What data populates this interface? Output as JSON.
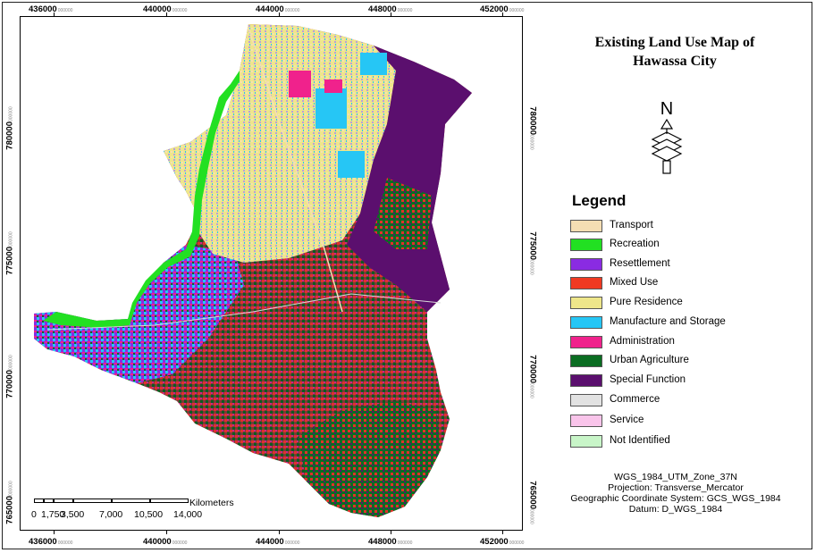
{
  "map": {
    "title_line1": "Existing Land Use Map of",
    "title_line2": "Hawassa City",
    "x_ticks": [
      "436000",
      "440000",
      "444000",
      "448000",
      "452000"
    ],
    "y_ticks": [
      "780000",
      "775000",
      "770000",
      "765000"
    ],
    "tick_suffix": "000000",
    "north_letter": "N"
  },
  "legend": {
    "title": "Legend",
    "items": [
      {
        "label": "Transport",
        "color": "#f5deb3"
      },
      {
        "label": "Recreation",
        "color": "#22e022"
      },
      {
        "label": "Resettlement",
        "color": "#8a2be2"
      },
      {
        "label": "Mixed Use",
        "color": "#f03a22"
      },
      {
        "label": "Pure Residence",
        "color": "#eee68a"
      },
      {
        "label": "Manufacture and Storage",
        "color": "#26c6f5"
      },
      {
        "label": "Administration",
        "color": "#f0228c"
      },
      {
        "label": "Urban Agriculture",
        "color": "#0b6d22"
      },
      {
        "label": "Special Function",
        "color": "#5b0f6e"
      },
      {
        "label": "Commerce",
        "color": "#e2e2e2"
      },
      {
        "label": "Service",
        "color": "#f9c4ea"
      },
      {
        "label": "Not Identified",
        "color": "#c8f5c8"
      }
    ]
  },
  "projection": {
    "line1": "WGS_1984_UTM_Zone_37N",
    "line2": "Projection: Transverse_Mercator",
    "line3": "Geographic Coordinate System: GCS_WGS_1984",
    "line4": "Datum: D_WGS_1984"
  },
  "scalebar": {
    "units": "Kilometers",
    "labels": [
      "0",
      "1,750",
      "3,500",
      "7,000",
      "10,500",
      "14,000"
    ]
  }
}
